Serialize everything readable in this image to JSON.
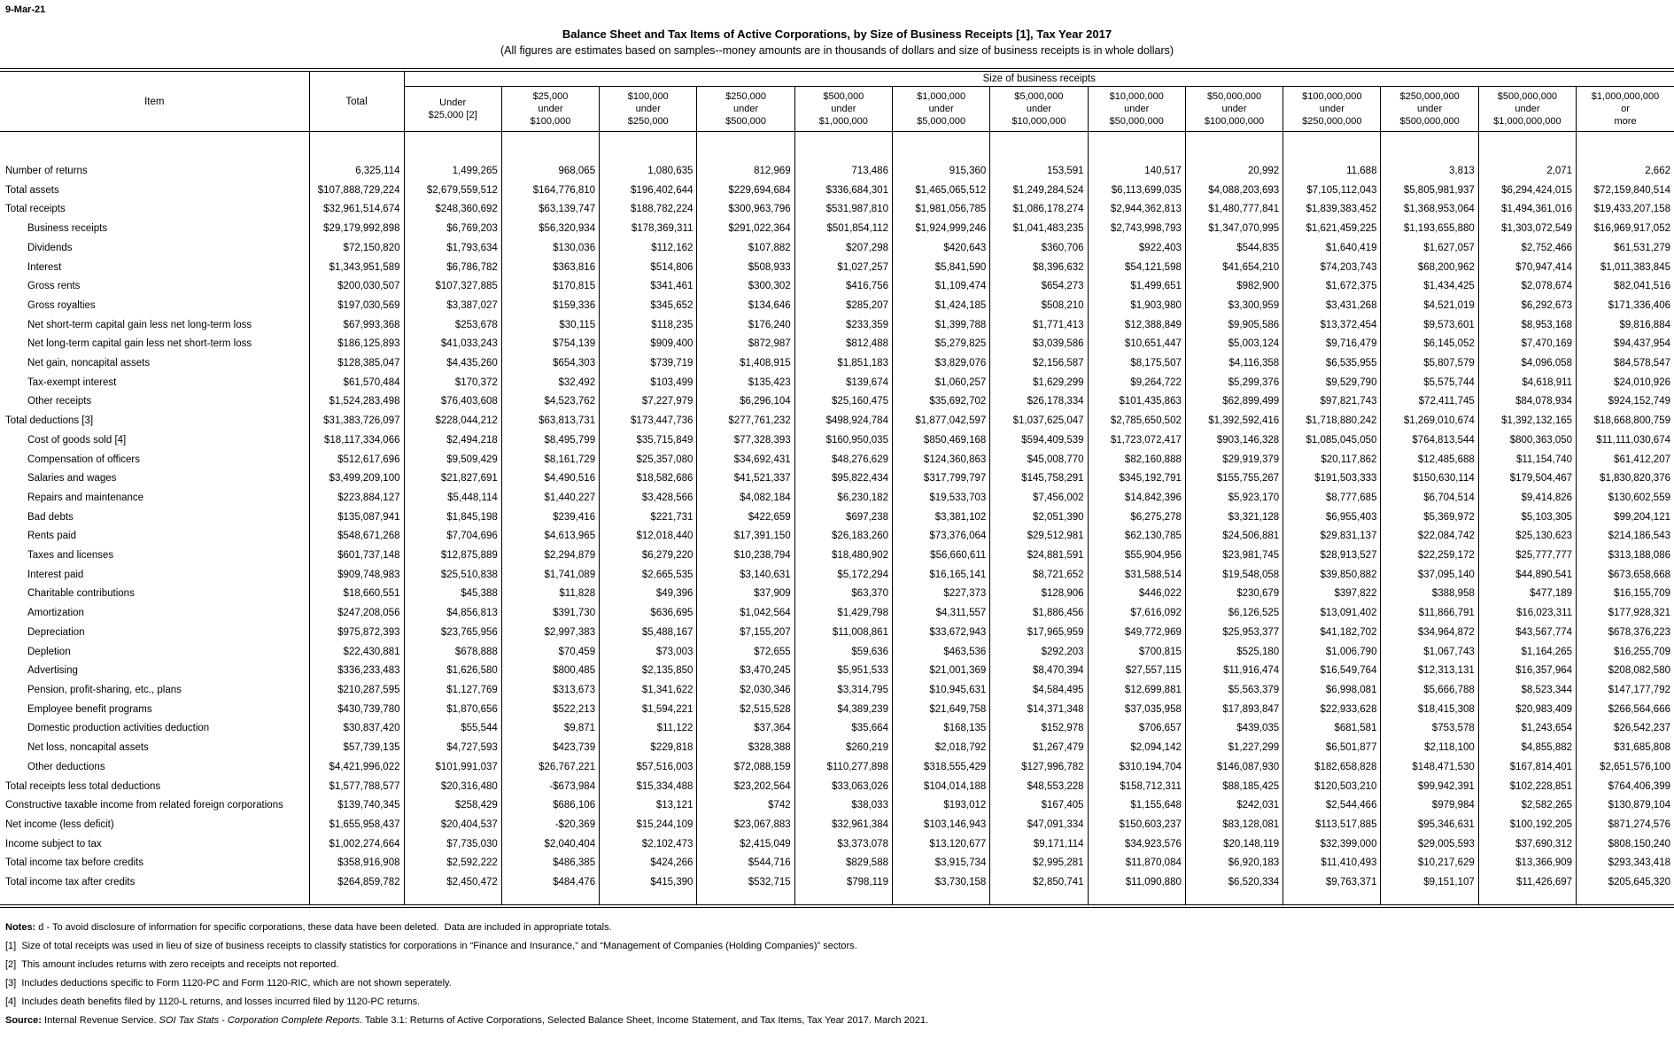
{
  "page": {
    "date": "9-Mar-21",
    "title": "Balance Sheet and Tax Items of Active Corporations, by Size of Business Receipts [1], Tax Year 2017",
    "subtitle": "(All figures are estimates based on samples--money amounts are in thousands of dollars and size of business receipts is in whole dollars)"
  },
  "table": {
    "item_header": "Item",
    "total_header": "Total",
    "spanner": "Size of business receipts",
    "size_columns": [
      "Under\n$25,000 [2]",
      "$25,000\nunder\n$100,000",
      "$100,000\nunder\n$250,000",
      "$250,000\nunder\n$500,000",
      "$500,000\nunder\n$1,000,000",
      "$1,000,000\nunder\n$5,000,000",
      "$5,000,000\nunder\n$10,000,000",
      "$10,000,000\nunder\n$50,000,000",
      "$50,000,000\nunder\n$100,000,000",
      "$100,000,000\nunder\n$250,000,000",
      "$250,000,000\nunder\n$500,000,000",
      "$500,000,000\nunder\n$1,000,000,000",
      "$1,000,000,000\nor\nmore"
    ],
    "rows": [
      {
        "label": "Number of returns",
        "indent": 0,
        "values": [
          "6,325,114",
          "1,499,265",
          "968,065",
          "1,080,635",
          "812,969",
          "713,486",
          "915,360",
          "153,591",
          "140,517",
          "20,992",
          "11,688",
          "3,813",
          "2,071",
          "2,662"
        ]
      },
      {
        "label": "Total assets",
        "indent": 0,
        "values": [
          "$107,888,729,224",
          "$2,679,559,512",
          "$164,776,810",
          "$196,402,644",
          "$229,694,684",
          "$336,684,301",
          "$1,465,065,512",
          "$1,249,284,524",
          "$6,113,699,035",
          "$4,088,203,693",
          "$7,105,112,043",
          "$5,805,981,937",
          "$6,294,424,015",
          "$72,159,840,514"
        ]
      },
      {
        "label": "Total receipts",
        "indent": 0,
        "values": [
          "$32,961,514,674",
          "$248,360,692",
          "$63,139,747",
          "$188,782,224",
          "$300,963,796",
          "$531,987,810",
          "$1,981,056,785",
          "$1,086,178,274",
          "$2,944,362,813",
          "$1,480,777,841",
          "$1,839,383,452",
          "$1,368,953,064",
          "$1,494,361,016",
          "$19,433,207,158"
        ]
      },
      {
        "label": "Business receipts",
        "indent": 1,
        "values": [
          "$29,179,992,898",
          "$6,769,203",
          "$56,320,934",
          "$178,369,311",
          "$291,022,364",
          "$501,854,112",
          "$1,924,999,246",
          "$1,041,483,235",
          "$2,743,998,793",
          "$1,347,070,995",
          "$1,621,459,225",
          "$1,193,655,880",
          "$1,303,072,549",
          "$16,969,917,052"
        ]
      },
      {
        "label": "Dividends",
        "indent": 1,
        "values": [
          "$72,150,820",
          "$1,793,634",
          "$130,036",
          "$112,162",
          "$107,882",
          "$207,298",
          "$420,643",
          "$360,706",
          "$922,403",
          "$544,835",
          "$1,640,419",
          "$1,627,057",
          "$2,752,466",
          "$61,531,279"
        ]
      },
      {
        "label": "Interest",
        "indent": 1,
        "values": [
          "$1,343,951,589",
          "$6,786,782",
          "$363,816",
          "$514,806",
          "$508,933",
          "$1,027,257",
          "$5,841,590",
          "$8,396,632",
          "$54,121,598",
          "$41,654,210",
          "$74,203,743",
          "$68,200,962",
          "$70,947,414",
          "$1,011,383,845"
        ]
      },
      {
        "label": "Gross rents",
        "indent": 1,
        "values": [
          "$200,030,507",
          "$107,327,885",
          "$170,815",
          "$341,461",
          "$300,302",
          "$416,756",
          "$1,109,474",
          "$654,273",
          "$1,499,651",
          "$982,900",
          "$1,672,375",
          "$1,434,425",
          "$2,078,674",
          "$82,041,516"
        ]
      },
      {
        "label": "Gross royalties",
        "indent": 1,
        "values": [
          "$197,030,569",
          "$3,387,027",
          "$159,336",
          "$345,652",
          "$134,646",
          "$285,207",
          "$1,424,185",
          "$508,210",
          "$1,903,980",
          "$3,300,959",
          "$3,431,268",
          "$4,521,019",
          "$6,292,673",
          "$171,336,406"
        ]
      },
      {
        "label": "Net short-term capital gain less net long-term loss",
        "indent": 1,
        "values": [
          "$67,993,368",
          "$253,678",
          "$30,115",
          "$118,235",
          "$176,240",
          "$233,359",
          "$1,399,788",
          "$1,771,413",
          "$12,388,849",
          "$9,905,586",
          "$13,372,454",
          "$9,573,601",
          "$8,953,168",
          "$9,816,884"
        ]
      },
      {
        "label": "Net long-term capital gain less net short-term loss",
        "indent": 1,
        "values": [
          "$186,125,893",
          "$41,033,243",
          "$754,139",
          "$909,400",
          "$872,987",
          "$812,488",
          "$5,279,825",
          "$3,039,586",
          "$10,651,447",
          "$5,003,124",
          "$9,716,479",
          "$6,145,052",
          "$7,470,169",
          "$94,437,954"
        ]
      },
      {
        "label": "Net gain, noncapital assets",
        "indent": 1,
        "values": [
          "$128,385,047",
          "$4,435,260",
          "$654,303",
          "$739,719",
          "$1,408,915",
          "$1,851,183",
          "$3,829,076",
          "$2,156,587",
          "$8,175,507",
          "$4,116,358",
          "$6,535,955",
          "$5,807,579",
          "$4,096,058",
          "$84,578,547"
        ]
      },
      {
        "label": "Tax-exempt interest",
        "indent": 1,
        "values": [
          "$61,570,484",
          "$170,372",
          "$32,492",
          "$103,499",
          "$135,423",
          "$139,674",
          "$1,060,257",
          "$1,629,299",
          "$9,264,722",
          "$5,299,376",
          "$9,529,790",
          "$5,575,744",
          "$4,618,911",
          "$24,010,926"
        ]
      },
      {
        "label": "Other receipts",
        "indent": 1,
        "values": [
          "$1,524,283,498",
          "$76,403,608",
          "$4,523,762",
          "$7,227,979",
          "$6,296,104",
          "$25,160,475",
          "$35,692,702",
          "$26,178,334",
          "$101,435,863",
          "$62,899,499",
          "$97,821,743",
          "$72,411,745",
          "$84,078,934",
          "$924,152,749"
        ]
      },
      {
        "label": "Total deductions [3]",
        "indent": 0,
        "values": [
          "$31,383,726,097",
          "$228,044,212",
          "$63,813,731",
          "$173,447,736",
          "$277,761,232",
          "$498,924,784",
          "$1,877,042,597",
          "$1,037,625,047",
          "$2,785,650,502",
          "$1,392,592,416",
          "$1,718,880,242",
          "$1,269,010,674",
          "$1,392,132,165",
          "$18,668,800,759"
        ]
      },
      {
        "label": "Cost of goods sold [4]",
        "indent": 1,
        "values": [
          "$18,117,334,066",
          "$2,494,218",
          "$8,495,799",
          "$35,715,849",
          "$77,328,393",
          "$160,950,035",
          "$850,469,168",
          "$594,409,539",
          "$1,723,072,417",
          "$903,146,328",
          "$1,085,045,050",
          "$764,813,544",
          "$800,363,050",
          "$11,111,030,674"
        ]
      },
      {
        "label": "Compensation of officers",
        "indent": 1,
        "values": [
          "$512,617,696",
          "$9,509,429",
          "$8,161,729",
          "$25,357,080",
          "$34,692,431",
          "$48,276,629",
          "$124,360,863",
          "$45,008,770",
          "$82,160,888",
          "$29,919,379",
          "$20,117,862",
          "$12,485,688",
          "$11,154,740",
          "$61,412,207"
        ]
      },
      {
        "label": "Salaries and wages",
        "indent": 1,
        "values": [
          "$3,499,209,100",
          "$21,827,691",
          "$4,490,516",
          "$18,582,686",
          "$41,521,337",
          "$95,822,434",
          "$317,799,797",
          "$145,758,291",
          "$345,192,791",
          "$155,755,267",
          "$191,503,333",
          "$150,630,114",
          "$179,504,467",
          "$1,830,820,376"
        ]
      },
      {
        "label": "Repairs and maintenance",
        "indent": 1,
        "values": [
          "$223,884,127",
          "$5,448,114",
          "$1,440,227",
          "$3,428,566",
          "$4,082,184",
          "$6,230,182",
          "$19,533,703",
          "$7,456,002",
          "$14,842,396",
          "$5,923,170",
          "$8,777,685",
          "$6,704,514",
          "$9,414,826",
          "$130,602,559"
        ]
      },
      {
        "label": "Bad debts",
        "indent": 1,
        "values": [
          "$135,087,941",
          "$1,845,198",
          "$239,416",
          "$221,731",
          "$422,659",
          "$697,238",
          "$3,381,102",
          "$2,051,390",
          "$6,275,278",
          "$3,321,128",
          "$6,955,403",
          "$5,369,972",
          "$5,103,305",
          "$99,204,121"
        ]
      },
      {
        "label": "Rents paid",
        "indent": 1,
        "values": [
          "$548,671,268",
          "$7,704,696",
          "$4,613,965",
          "$12,018,440",
          "$17,391,150",
          "$26,183,260",
          "$73,376,064",
          "$29,512,981",
          "$62,130,785",
          "$24,506,881",
          "$29,831,137",
          "$22,084,742",
          "$25,130,623",
          "$214,186,543"
        ]
      },
      {
        "label": "Taxes and licenses",
        "indent": 1,
        "values": [
          "$601,737,148",
          "$12,875,889",
          "$2,294,879",
          "$6,279,220",
          "$10,238,794",
          "$18,480,902",
          "$56,660,611",
          "$24,881,591",
          "$55,904,956",
          "$23,981,745",
          "$28,913,527",
          "$22,259,172",
          "$25,777,777",
          "$313,188,086"
        ]
      },
      {
        "label": "Interest paid",
        "indent": 1,
        "values": [
          "$909,748,983",
          "$25,510,838",
          "$1,741,089",
          "$2,665,535",
          "$3,140,631",
          "$5,172,294",
          "$16,165,141",
          "$8,721,652",
          "$31,588,514",
          "$19,548,058",
          "$39,850,882",
          "$37,095,140",
          "$44,890,541",
          "$673,658,668"
        ]
      },
      {
        "label": "Charitable contributions",
        "indent": 1,
        "values": [
          "$18,660,551",
          "$45,388",
          "$11,828",
          "$49,396",
          "$37,909",
          "$63,370",
          "$227,373",
          "$128,906",
          "$446,022",
          "$230,679",
          "$397,822",
          "$388,958",
          "$477,189",
          "$16,155,709"
        ]
      },
      {
        "label": "Amortization",
        "indent": 1,
        "values": [
          "$247,208,056",
          "$4,856,813",
          "$391,730",
          "$636,695",
          "$1,042,564",
          "$1,429,798",
          "$4,311,557",
          "$1,886,456",
          "$7,616,092",
          "$6,126,525",
          "$13,091,402",
          "$11,866,791",
          "$16,023,311",
          "$177,928,321"
        ]
      },
      {
        "label": "Depreciation",
        "indent": 1,
        "values": [
          "$975,872,393",
          "$23,765,956",
          "$2,997,383",
          "$5,488,167",
          "$7,155,207",
          "$11,008,861",
          "$33,672,943",
          "$17,965,959",
          "$49,772,969",
          "$25,953,377",
          "$41,182,702",
          "$34,964,872",
          "$43,567,774",
          "$678,376,223"
        ]
      },
      {
        "label": "Depletion",
        "indent": 1,
        "values": [
          "$22,430,881",
          "$678,888",
          "$70,459",
          "$73,003",
          "$72,655",
          "$59,636",
          "$463,536",
          "$292,203",
          "$700,815",
          "$525,180",
          "$1,006,790",
          "$1,067,743",
          "$1,164,265",
          "$16,255,709"
        ]
      },
      {
        "label": "Advertising",
        "indent": 1,
        "values": [
          "$336,233,483",
          "$1,626,580",
          "$800,485",
          "$2,135,850",
          "$3,470,245",
          "$5,951,533",
          "$21,001,369",
          "$8,470,394",
          "$27,557,115",
          "$11,916,474",
          "$16,549,764",
          "$12,313,131",
          "$16,357,964",
          "$208,082,580"
        ]
      },
      {
        "label": "Pension, profit-sharing, etc., plans",
        "indent": 1,
        "values": [
          "$210,287,595",
          "$1,127,769",
          "$313,673",
          "$1,341,622",
          "$2,030,346",
          "$3,314,795",
          "$10,945,631",
          "$4,584,495",
          "$12,699,881",
          "$5,563,379",
          "$6,998,081",
          "$5,666,788",
          "$8,523,344",
          "$147,177,792"
        ]
      },
      {
        "label": "Employee benefit programs",
        "indent": 1,
        "values": [
          "$430,739,780",
          "$1,870,656",
          "$522,213",
          "$1,594,221",
          "$2,515,528",
          "$4,389,239",
          "$21,649,758",
          "$14,371,348",
          "$37,035,958",
          "$17,893,847",
          "$22,933,628",
          "$18,415,308",
          "$20,983,409",
          "$266,564,666"
        ]
      },
      {
        "label": "Domestic production activities deduction",
        "indent": 1,
        "values": [
          "$30,837,420",
          "$55,544",
          "$9,871",
          "$11,122",
          "$37,364",
          "$35,664",
          "$168,135",
          "$152,978",
          "$706,657",
          "$439,035",
          "$681,581",
          "$753,578",
          "$1,243,654",
          "$26,542,237"
        ]
      },
      {
        "label": "Net loss, noncapital assets",
        "indent": 1,
        "values": [
          "$57,739,135",
          "$4,727,593",
          "$423,739",
          "$229,818",
          "$328,388",
          "$260,219",
          "$2,018,792",
          "$1,267,479",
          "$2,094,142",
          "$1,227,299",
          "$6,501,877",
          "$2,118,100",
          "$4,855,882",
          "$31,685,808"
        ]
      },
      {
        "label": "Other deductions",
        "indent": 1,
        "values": [
          "$4,421,996,022",
          "$101,991,037",
          "$26,767,221",
          "$57,516,003",
          "$72,088,159",
          "$110,277,898",
          "$318,555,429",
          "$127,996,782",
          "$310,194,704",
          "$146,087,930",
          "$182,658,828",
          "$148,471,530",
          "$167,814,401",
          "$2,651,576,100"
        ]
      },
      {
        "label": "Total receipts less total deductions",
        "indent": 0,
        "values": [
          "$1,577,788,577",
          "$20,316,480",
          "-$673,984",
          "$15,334,488",
          "$23,202,564",
          "$33,063,026",
          "$104,014,188",
          "$48,553,228",
          "$158,712,311",
          "$88,185,425",
          "$120,503,210",
          "$99,942,391",
          "$102,228,851",
          "$764,406,399"
        ]
      },
      {
        "label": "Constructive taxable income from related foreign corporations",
        "indent": 0,
        "values": [
          "$139,740,345",
          "$258,429",
          "$686,106",
          "$13,121",
          "$742",
          "$38,033",
          "$193,012",
          "$167,405",
          "$1,155,648",
          "$242,031",
          "$2,544,466",
          "$979,984",
          "$2,582,265",
          "$130,879,104"
        ]
      },
      {
        "label": "Net income (less deficit)",
        "indent": 0,
        "values": [
          "$1,655,958,437",
          "$20,404,537",
          "-$20,369",
          "$15,244,109",
          "$23,067,883",
          "$32,961,384",
          "$103,146,943",
          "$47,091,334",
          "$150,603,237",
          "$83,128,081",
          "$113,517,885",
          "$95,346,631",
          "$100,192,205",
          "$871,274,576"
        ]
      },
      {
        "label": "Income subject to tax",
        "indent": 0,
        "values": [
          "$1,002,274,664",
          "$7,735,030",
          "$2,040,404",
          "$2,102,473",
          "$2,415,049",
          "$3,373,078",
          "$13,120,677",
          "$9,171,114",
          "$34,923,576",
          "$20,148,119",
          "$32,399,000",
          "$29,005,593",
          "$37,690,312",
          "$808,150,240"
        ]
      },
      {
        "label": "Total income tax before credits",
        "indent": 0,
        "values": [
          "$358,916,908",
          "$2,592,222",
          "$486,385",
          "$424,266",
          "$544,716",
          "$829,588",
          "$3,915,734",
          "$2,995,281",
          "$11,870,084",
          "$6,920,183",
          "$11,410,493",
          "$10,217,629",
          "$13,366,909",
          "$293,343,418"
        ]
      },
      {
        "label": "Total income tax after credits",
        "indent": 0,
        "values": [
          "$264,859,782",
          "$2,450,472",
          "$484,476",
          "$415,390",
          "$532,715",
          "$798,119",
          "$3,730,158",
          "$2,850,741",
          "$11,090,880",
          "$6,520,334",
          "$9,763,371",
          "$9,151,107",
          "$11,426,697",
          "$205,645,320"
        ]
      }
    ]
  },
  "notes": [
    {
      "parts": [
        {
          "t": "Notes:",
          "b": true
        },
        {
          "t": " d - To avoid disclosure of information for specific corporations, these data have been deleted.  Data are included in appropriate totals."
        }
      ]
    },
    {
      "parts": [
        {
          "t": "[1]  Size of total receipts was used in lieu of size of business receipts to classify statistics for corporations in “Finance and Insurance,” and “Management of Companies (Holding Companies)” sectors."
        }
      ]
    },
    {
      "parts": [
        {
          "t": "[2]  This amount includes returns with zero receipts and receipts not reported."
        }
      ]
    },
    {
      "parts": [
        {
          "t": "[3]  Includes deductions specific to Form 1120-PC and Form 1120-RIC, which are not shown seperately."
        }
      ]
    },
    {
      "parts": [
        {
          "t": "[4]  Includes death benefits filed by 1120-L returns, and losses incurred filed by 1120-PC returns."
        }
      ]
    },
    {
      "parts": [
        {
          "t": "Source:",
          "b": true
        },
        {
          "t": " Internal Revenue Service. "
        },
        {
          "t": "SOI Tax Stats - Corporation Complete Reports",
          "i": true
        },
        {
          "t": ". Table 3.1: Returns of Active Corporations, Selected Balance Sheet, Income Statement, and Tax Items, Tax Year 2017. March 2021."
        }
      ]
    }
  ]
}
